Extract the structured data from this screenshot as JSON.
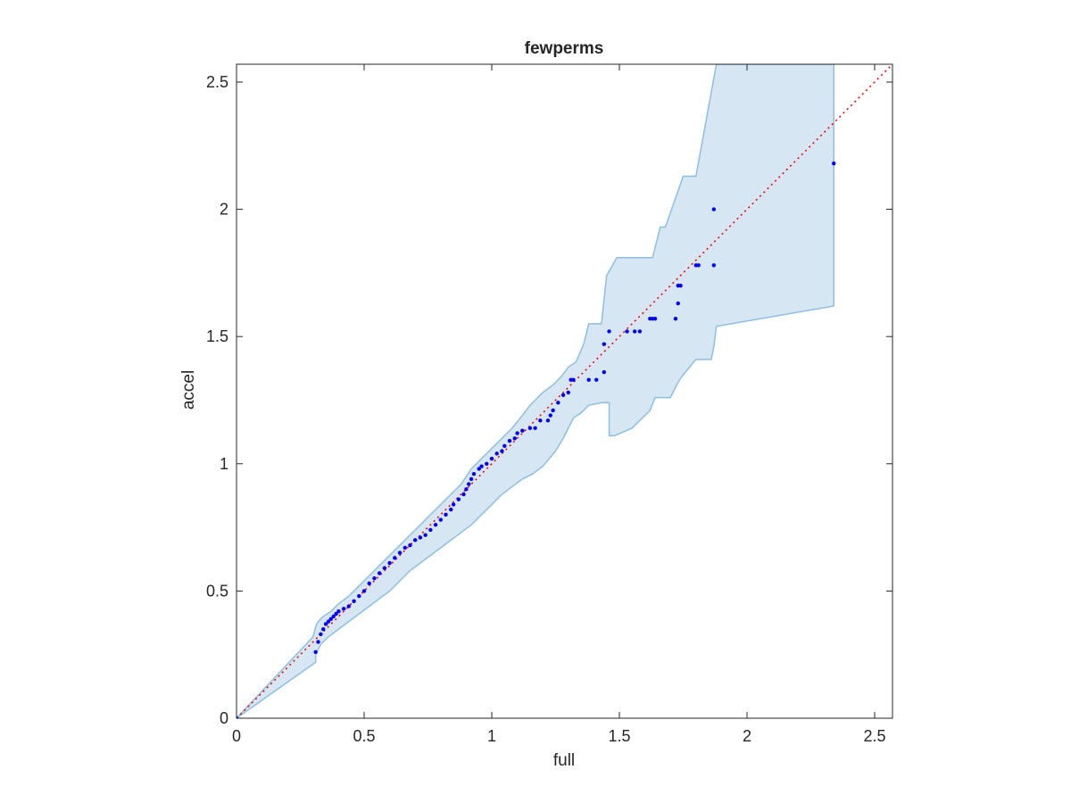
{
  "chart_data": {
    "type": "scatter",
    "title": "fewperms",
    "xlabel": "full",
    "ylabel": "accel",
    "xlim": [
      0,
      2.57
    ],
    "ylim": [
      0,
      2.57
    ],
    "xticks": [
      0,
      0.5,
      1,
      1.5,
      2,
      2.5
    ],
    "yticks": [
      0,
      0.5,
      1,
      1.5,
      2,
      2.5
    ],
    "xtick_labels": [
      "0",
      "0.5",
      "1",
      "1.5",
      "2",
      "2.5"
    ],
    "ytick_labels": [
      "0",
      "0.5",
      "1",
      "1.5",
      "2",
      "2.5"
    ],
    "grid": false,
    "colors": {
      "points": "#0000ff",
      "reference_line": "#ff0000",
      "band_fill": "#d6e7f3",
      "band_edge": "#8cbfe0",
      "axes": "#262626"
    },
    "series": [],
    "points": {
      "x": [
        0,
        0.31,
        0.32,
        0.33,
        0.34,
        0.35,
        0.36,
        0.37,
        0.38,
        0.39,
        0.4,
        0.42,
        0.44,
        0.46,
        0.48,
        0.5,
        0.52,
        0.54,
        0.56,
        0.58,
        0.6,
        0.62,
        0.64,
        0.66,
        0.68,
        0.7,
        0.72,
        0.74,
        0.76,
        0.78,
        0.8,
        0.82,
        0.84,
        0.85,
        0.87,
        0.89,
        0.9,
        0.91,
        0.92,
        0.93,
        0.95,
        0.96,
        0.98,
        1.0,
        1.02,
        1.04,
        1.05,
        1.07,
        1.09,
        1.1,
        1.12,
        1.15,
        1.17,
        1.19,
        1.22,
        1.23,
        1.24,
        1.26,
        1.28,
        1.3,
        1.31,
        1.32,
        1.38,
        1.41,
        1.44,
        1.44,
        1.46,
        1.53,
        1.56,
        1.58,
        1.62,
        1.63,
        1.64,
        1.72,
        1.73,
        1.73,
        1.74,
        1.8,
        1.81,
        1.87,
        1.87,
        2.34
      ],
      "y": [
        0,
        0.26,
        0.3,
        0.33,
        0.35,
        0.37,
        0.38,
        0.39,
        0.4,
        0.41,
        0.42,
        0.43,
        0.44,
        0.46,
        0.48,
        0.5,
        0.53,
        0.55,
        0.57,
        0.59,
        0.61,
        0.63,
        0.65,
        0.67,
        0.68,
        0.7,
        0.71,
        0.72,
        0.74,
        0.76,
        0.78,
        0.8,
        0.82,
        0.84,
        0.86,
        0.88,
        0.9,
        0.92,
        0.94,
        0.96,
        0.98,
        0.99,
        1.0,
        1.02,
        1.04,
        1.05,
        1.07,
        1.09,
        1.1,
        1.12,
        1.13,
        1.14,
        1.14,
        1.17,
        1.17,
        1.19,
        1.21,
        1.24,
        1.27,
        1.28,
        1.33,
        1.33,
        1.33,
        1.33,
        1.36,
        1.47,
        1.52,
        1.52,
        1.52,
        1.52,
        1.57,
        1.57,
        1.57,
        1.57,
        1.63,
        1.7,
        1.7,
        1.78,
        1.78,
        1.78,
        2.0,
        2.18
      ]
    },
    "reference_line": {
      "x": [
        0,
        2.57
      ],
      "y": [
        0,
        2.57
      ]
    },
    "band_upper": {
      "x": [
        0,
        0.3,
        0.31,
        0.32,
        0.34,
        0.37,
        0.4,
        0.44,
        0.48,
        0.52,
        0.56,
        0.6,
        0.64,
        0.68,
        0.72,
        0.76,
        0.8,
        0.84,
        0.88,
        0.92,
        0.96,
        1.0,
        1.04,
        1.08,
        1.12,
        1.15,
        1.2,
        1.24,
        1.27,
        1.3,
        1.33,
        1.36,
        1.36,
        1.38,
        1.43,
        1.45,
        1.49,
        1.63,
        1.66,
        1.68,
        1.75,
        1.8,
        1.88,
        1.88,
        2.34,
        2.34
      ],
      "y": [
        0,
        0.32,
        0.36,
        0.38,
        0.4,
        0.42,
        0.45,
        0.48,
        0.52,
        0.56,
        0.6,
        0.64,
        0.68,
        0.72,
        0.76,
        0.8,
        0.84,
        0.88,
        0.92,
        0.98,
        1.02,
        1.06,
        1.1,
        1.14,
        1.19,
        1.23,
        1.28,
        1.31,
        1.34,
        1.38,
        1.4,
        1.47,
        1.47,
        1.55,
        1.55,
        1.74,
        1.81,
        1.81,
        1.93,
        1.93,
        2.13,
        2.13,
        2.57,
        2.57,
        2.57,
        2.57
      ]
    },
    "band_lower": {
      "x": [
        0,
        0.31,
        0.31,
        0.33,
        0.36,
        0.4,
        0.44,
        0.48,
        0.52,
        0.56,
        0.6,
        0.64,
        0.68,
        0.72,
        0.76,
        0.8,
        0.84,
        0.88,
        0.92,
        0.96,
        1.0,
        1.04,
        1.08,
        1.12,
        1.16,
        1.2,
        1.25,
        1.28,
        1.3,
        1.32,
        1.35,
        1.38,
        1.43,
        1.46,
        1.46,
        1.48,
        1.55,
        1.62,
        1.64,
        1.7,
        1.73,
        1.75,
        1.8,
        1.86,
        1.87,
        1.88,
        2.34
      ],
      "y": [
        0,
        0.22,
        0.25,
        0.29,
        0.32,
        0.35,
        0.38,
        0.41,
        0.44,
        0.47,
        0.5,
        0.54,
        0.58,
        0.61,
        0.64,
        0.67,
        0.7,
        0.73,
        0.76,
        0.8,
        0.84,
        0.88,
        0.91,
        0.94,
        0.96,
        0.99,
        1.05,
        1.1,
        1.14,
        1.18,
        1.2,
        1.23,
        1.24,
        1.24,
        1.11,
        1.11,
        1.14,
        1.21,
        1.26,
        1.26,
        1.32,
        1.35,
        1.41,
        1.41,
        1.46,
        1.54,
        1.62
      ]
    }
  }
}
